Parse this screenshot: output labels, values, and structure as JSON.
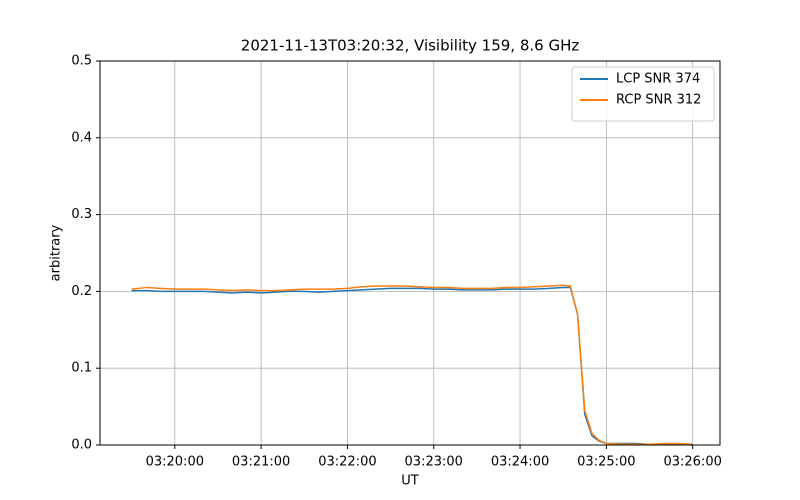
{
  "chart_data": {
    "type": "line",
    "title": "2021-11-13T03:20:32, Visibility 159, 8.6 GHz",
    "x_label": "UT",
    "y_label": "arbitrary",
    "x": [
      "03:19:30",
      "03:19:40",
      "03:19:50",
      "03:20:00",
      "03:20:10",
      "03:20:20",
      "03:20:30",
      "03:20:40",
      "03:20:50",
      "03:21:00",
      "03:21:10",
      "03:21:20",
      "03:21:30",
      "03:21:40",
      "03:21:50",
      "03:22:00",
      "03:22:10",
      "03:22:20",
      "03:22:30",
      "03:22:40",
      "03:22:50",
      "03:23:00",
      "03:23:10",
      "03:23:20",
      "03:23:30",
      "03:23:40",
      "03:23:50",
      "03:24:00",
      "03:24:10",
      "03:24:20",
      "03:24:30",
      "03:24:35",
      "03:24:40",
      "03:24:45",
      "03:24:50",
      "03:24:55",
      "03:25:00",
      "03:25:10",
      "03:25:20",
      "03:25:30",
      "03:25:40",
      "03:25:50",
      "03:26:00"
    ],
    "series": [
      {
        "name": "LCP SNR 374",
        "color": "#1f77b4",
        "values": [
          0.201,
          0.201,
          0.2,
          0.2,
          0.2,
          0.2,
          0.199,
          0.198,
          0.199,
          0.198,
          0.199,
          0.2,
          0.2,
          0.199,
          0.2,
          0.201,
          0.202,
          0.203,
          0.204,
          0.204,
          0.204,
          0.203,
          0.203,
          0.202,
          0.202,
          0.202,
          0.203,
          0.203,
          0.203,
          0.204,
          0.205,
          0.205,
          0.17,
          0.04,
          0.012,
          0.005,
          0.002,
          0.002,
          0.002,
          0.001,
          0.001,
          0.001,
          0.0
        ]
      },
      {
        "name": "RCP SNR 312",
        "color": "#ff7f0e",
        "values": [
          0.203,
          0.205,
          0.204,
          0.203,
          0.203,
          0.203,
          0.202,
          0.201,
          0.202,
          0.201,
          0.201,
          0.202,
          0.203,
          0.203,
          0.203,
          0.204,
          0.206,
          0.207,
          0.207,
          0.207,
          0.206,
          0.205,
          0.205,
          0.204,
          0.204,
          0.204,
          0.205,
          0.205,
          0.206,
          0.207,
          0.208,
          0.207,
          0.17,
          0.045,
          0.015,
          0.006,
          0.002,
          0.001,
          0.001,
          0.001,
          0.002,
          0.002,
          0.001
        ]
      }
    ],
    "xlim": [
      "03:19:08",
      "03:26:19"
    ],
    "xticks": [
      "03:20:00",
      "03:21:00",
      "03:22:00",
      "03:23:00",
      "03:24:00",
      "03:25:00",
      "03:26:00"
    ],
    "ylim": [
      0,
      0.5
    ],
    "yticks": [
      {
        "value": 0,
        "label": "0.0"
      },
      0.1,
      0.2,
      0.3,
      0.4,
      0.5
    ],
    "grid": true,
    "legend": "upper right"
  }
}
